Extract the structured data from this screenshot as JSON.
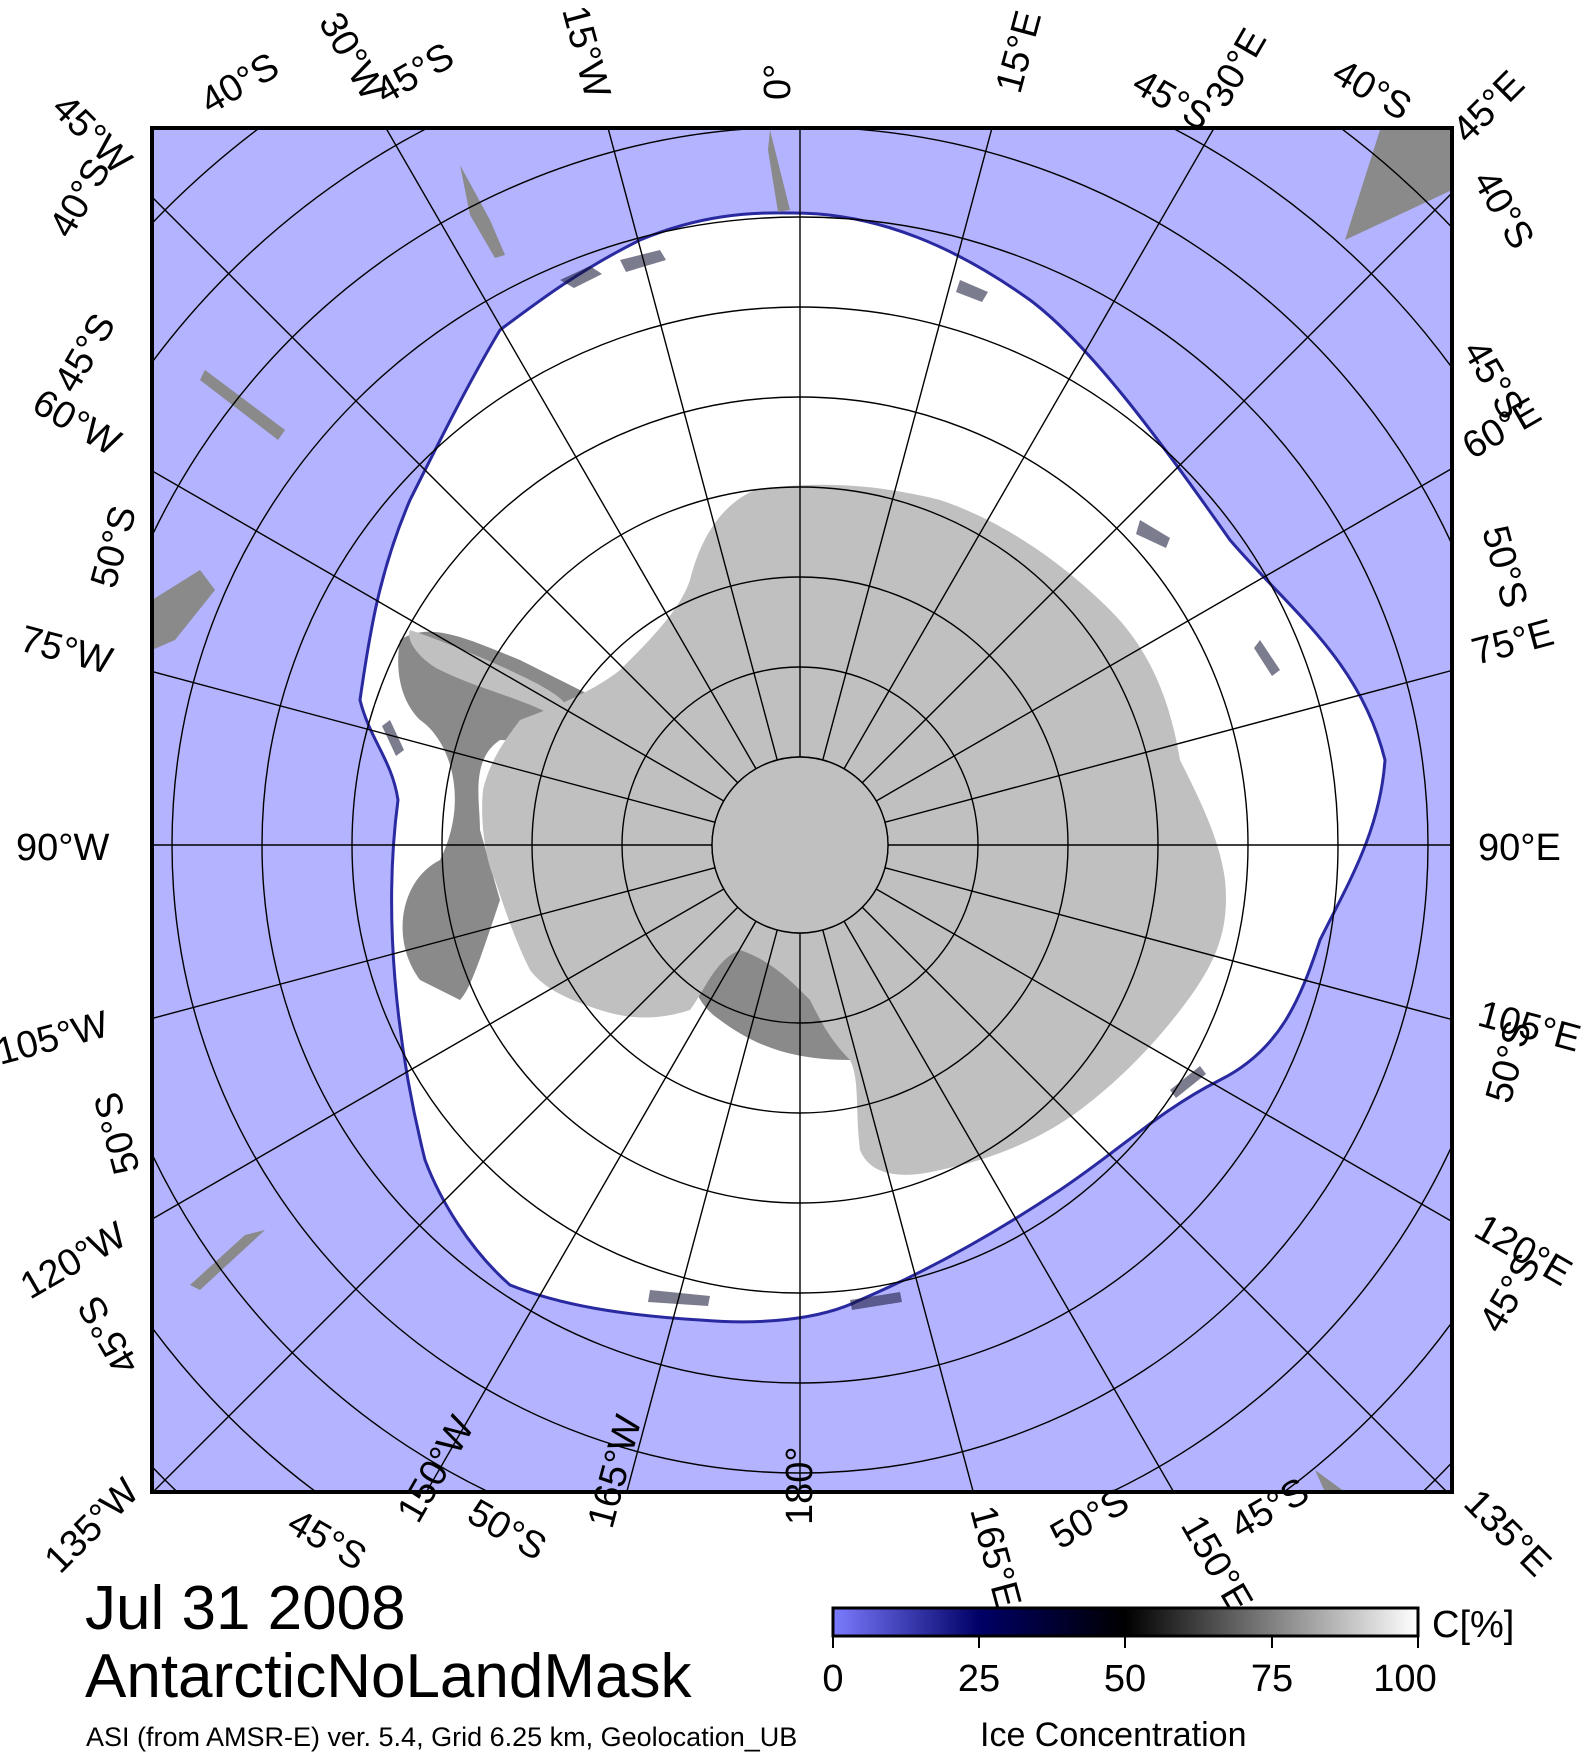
{
  "map": {
    "date": "Jul 31 2008",
    "dataset": "AntarcticNoLandMask",
    "credit": "ASI (from AMSR-E) ver. 5.4,  Grid 6.25 km, Geolocation_UB",
    "ocean_color": "#b3b3ff",
    "ice_color": "#ffffff",
    "land_color": "#c0c0c0",
    "shelf_color": "#8a8a8a",
    "meridian_labels": {
      "top": [
        "30°W",
        "15°W",
        "0°",
        "15°E",
        "30°E"
      ],
      "left": [
        "45°W",
        "60°W",
        "75°W",
        "90°W",
        "105°W",
        "120°W",
        "135°W"
      ],
      "right": [
        "45°E",
        "60°E",
        "75°E",
        "90°E",
        "105°E",
        "120°E",
        "135°E"
      ],
      "bottom": [
        "150°W",
        "165°W",
        "180°",
        "165°E",
        "150°E"
      ]
    },
    "parallel_labels": [
      "40°S",
      "45°S",
      "50°S"
    ]
  },
  "colorbar": {
    "title": "C[%]",
    "subtitle": "Ice Concentration",
    "ticks": [
      "0",
      "25",
      "50",
      "75",
      "100"
    ],
    "gradient_colors": [
      "#7b7bff",
      "#000066",
      "#000000",
      "#808080",
      "#ffffff"
    ]
  }
}
